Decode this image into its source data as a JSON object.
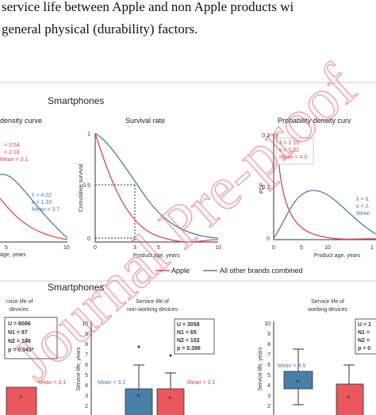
{
  "text": {
    "line1": "service life between Apple and non Apple products wi",
    "line2": "general physical (durability) factors."
  },
  "figure": {
    "top_title": "Smartphones",
    "bottom_title": "Smartphones",
    "legend": {
      "apple": "Apple",
      "others": "All other brands combined"
    },
    "panel1": {
      "title": "density curve",
      "red": [
        "= 3.54",
        "= 2.18",
        "Mean = 3.1"
      ],
      "blue": [
        "λ = 4.02",
        "κ = 1.33",
        "Mean = 3.7"
      ],
      "xticks": [
        "5",
        "10"
      ],
      "xlabel": "age, years"
    },
    "panel2": {
      "title": "Survival rate",
      "ylabel": "Cumulative survival",
      "xlabel": "Product age, years",
      "yticks": [
        "1",
        "0.5",
        "0"
      ],
      "xticks": [
        "0",
        "3",
        "5",
        "10"
      ]
    },
    "panel3": {
      "title": "Probability density curv",
      "ylabel": "PDF",
      "xlabel": "Product age, years",
      "yticks": [
        "0.2",
        "0.1",
        "0"
      ],
      "xticks": [
        "0",
        "5",
        "10",
        "1"
      ],
      "red": [
        "λ = 2.15",
        "κ = 0.52",
        "Mean = 4.0"
      ],
      "blue": [
        "λ = 6.",
        "κ = 2.",
        "Mean"
      ]
    },
    "box1": {
      "title": [
        "rvice life of",
        "devices"
      ],
      "stats": [
        "U = 6086",
        "N1 = 97",
        "N2 = 148",
        "p = 0.043*"
      ],
      "red_mean": "Mean = 3.1"
    },
    "box2": {
      "title": [
        "Service life of",
        "non-working devices"
      ],
      "ylabel": "Service life, years",
      "yticks": [
        "10",
        "9",
        "8",
        "7",
        "6",
        "5",
        "4",
        "3",
        "2"
      ],
      "stats": [
        "U = 3058",
        "N1 = 65",
        "N2 = 102",
        "p = 0.396"
      ],
      "blue_mean": "Mean = 3.2",
      "red_mean": "Mean = 3.1"
    },
    "box3": {
      "title": [
        "Service life of",
        "working devices"
      ],
      "ylabel": "Service life, years",
      "yticks": [
        "10",
        "9",
        "8",
        "7",
        "6",
        "5",
        "4",
        "3",
        "2"
      ],
      "stats": [
        "U = 1",
        "N1 =",
        "N2 =",
        "p = 0"
      ],
      "blue_mean": "Mean = 4.5"
    }
  },
  "watermark": "Journal Pre-proof"
}
